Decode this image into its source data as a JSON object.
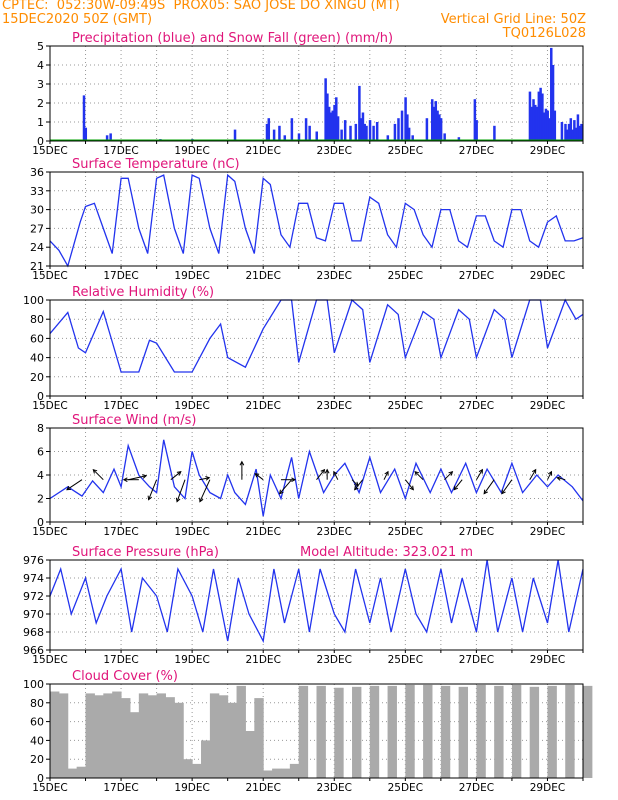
{
  "header": {
    "line1_left": "CPTEC:  052:30W-09:49S  PROX05: SAO JOSE DO XINGU (MT)",
    "line2_left": "15DEC2020 50Z (GMT)",
    "line2_right": "Vertical Grid Line: 50Z",
    "line3_right": "TQ0126L028"
  },
  "colors": {
    "title": "#e0157a",
    "header": "#ff8c00",
    "line": "#2233ee",
    "snow": "#00a000",
    "cloud": "#aaaaaa"
  },
  "x_ticks": [
    "15DEC",
    "17DEC",
    "19DEC",
    "21DEC",
    "23DEC",
    "25DEC",
    "27DEC",
    "29DEC"
  ],
  "x_range_days": [
    15,
    30
  ],
  "chart_data": [
    {
      "type": "bar",
      "title": "Precipitation (blue) and Snow Fall (green) (mm/h)",
      "ylim": [
        0,
        5
      ],
      "yticks": [
        "0",
        "1",
        "2",
        "3",
        "4",
        "5"
      ],
      "series": [
        {
          "name": "Precipitation",
          "values": [
            [
              15.95,
              2.4
            ],
            [
              16.0,
              0.7
            ],
            [
              16.6,
              0.3
            ],
            [
              16.7,
              0.4
            ],
            [
              18.1,
              0.1
            ],
            [
              19.0,
              0.1
            ],
            [
              20.2,
              0.6
            ],
            [
              21.1,
              0.9
            ],
            [
              21.15,
              1.2
            ],
            [
              21.3,
              0.6
            ],
            [
              21.45,
              0.8
            ],
            [
              21.6,
              0.3
            ],
            [
              21.8,
              1.2
            ],
            [
              22.0,
              0.4
            ],
            [
              22.2,
              1.2
            ],
            [
              22.3,
              0.8
            ],
            [
              22.5,
              0.5
            ],
            [
              22.75,
              3.3
            ],
            [
              22.8,
              2.5
            ],
            [
              22.85,
              1.8
            ],
            [
              22.9,
              1.5
            ],
            [
              22.95,
              1.6
            ],
            [
              23.0,
              1.9
            ],
            [
              23.05,
              2.3
            ],
            [
              23.1,
              1.3
            ],
            [
              23.2,
              0.6
            ],
            [
              23.3,
              1.1
            ],
            [
              23.45,
              0.8
            ],
            [
              23.6,
              0.9
            ],
            [
              23.7,
              2.9
            ],
            [
              23.75,
              1.2
            ],
            [
              23.8,
              1.5
            ],
            [
              23.85,
              0.9
            ],
            [
              23.9,
              0.8
            ],
            [
              24.0,
              1.1
            ],
            [
              24.1,
              0.8
            ],
            [
              24.2,
              1.0
            ],
            [
              24.5,
              0.3
            ],
            [
              24.7,
              0.9
            ],
            [
              24.8,
              1.2
            ],
            [
              24.9,
              1.6
            ],
            [
              25.0,
              2.3
            ],
            [
              25.05,
              1.4
            ],
            [
              25.1,
              0.7
            ],
            [
              25.2,
              0.3
            ],
            [
              25.6,
              1.2
            ],
            [
              25.75,
              2.2
            ],
            [
              25.8,
              1.8
            ],
            [
              25.85,
              2.1
            ],
            [
              25.9,
              1.6
            ],
            [
              25.95,
              1.4
            ],
            [
              26.0,
              1.2
            ],
            [
              26.1,
              0.4
            ],
            [
              26.5,
              0.2
            ],
            [
              26.95,
              2.2
            ],
            [
              27.0,
              1.1
            ],
            [
              27.5,
              0.8
            ],
            [
              28.5,
              2.6
            ],
            [
              28.55,
              1.8
            ],
            [
              28.6,
              2.2
            ],
            [
              28.65,
              1.9
            ],
            [
              28.7,
              1.8
            ],
            [
              28.75,
              2.6
            ],
            [
              28.8,
              2.8
            ],
            [
              28.85,
              2.5
            ],
            [
              28.9,
              1.5
            ],
            [
              28.95,
              1.7
            ],
            [
              29.0,
              1.6
            ],
            [
              29.05,
              1.2
            ],
            [
              29.1,
              4.9
            ],
            [
              29.15,
              4.0
            ],
            [
              29.2,
              1.6
            ],
            [
              29.4,
              1.0
            ],
            [
              29.5,
              0.9
            ],
            [
              29.55,
              0.6
            ],
            [
              29.6,
              0.9
            ],
            [
              29.65,
              1.2
            ],
            [
              29.7,
              0.6
            ],
            [
              29.75,
              1.1
            ],
            [
              29.8,
              0.7
            ],
            [
              29.85,
              1.4
            ],
            [
              29.9,
              0.8
            ],
            [
              29.95,
              0.9
            ]
          ]
        },
        {
          "name": "Snow Fall",
          "values": [
            [
              15,
              0
            ],
            [
              30,
              0
            ]
          ]
        }
      ]
    },
    {
      "type": "line",
      "title": "Surface Temperature (nC)",
      "ylim": [
        21,
        36
      ],
      "yticks": [
        "21",
        "24",
        "27",
        "30",
        "33",
        "36"
      ],
      "x": [
        15.0,
        15.25,
        15.5,
        15.85,
        16.0,
        16.25,
        16.5,
        16.75,
        17.0,
        17.2,
        17.5,
        17.75,
        18.0,
        18.2,
        18.5,
        18.75,
        19.0,
        19.2,
        19.5,
        19.75,
        20.0,
        20.2,
        20.5,
        20.75,
        21.0,
        21.2,
        21.5,
        21.75,
        22.0,
        22.25,
        22.5,
        22.75,
        23.0,
        23.25,
        23.5,
        23.75,
        24.0,
        24.25,
        24.5,
        24.75,
        25.0,
        25.25,
        25.5,
        25.75,
        26.0,
        26.25,
        26.5,
        26.75,
        27.0,
        27.25,
        27.5,
        27.75,
        28.0,
        28.25,
        28.5,
        28.75,
        29.0,
        29.25,
        29.5,
        29.75,
        30.0
      ],
      "y": [
        25,
        23.5,
        21,
        28,
        30.5,
        31,
        27,
        23,
        35,
        35,
        27,
        23,
        35,
        35.5,
        27,
        23,
        35.5,
        35,
        27,
        23,
        35.5,
        34.5,
        27,
        23,
        35,
        34,
        26,
        24,
        31,
        31,
        25.5,
        25,
        31,
        31,
        25,
        25,
        32,
        31,
        26,
        24,
        31,
        30,
        26,
        24,
        30,
        30,
        25,
        24,
        29,
        29,
        25,
        24,
        30,
        30,
        25,
        24,
        28,
        29,
        25,
        25,
        25.5
      ]
    },
    {
      "type": "line",
      "title": "Relative Humidity (%)",
      "ylim": [
        0,
        100
      ],
      "yticks": [
        "0",
        "20",
        "40",
        "60",
        "80",
        "100"
      ],
      "x": [
        15.0,
        15.5,
        15.8,
        16.0,
        16.5,
        17.0,
        17.5,
        17.8,
        18.0,
        18.5,
        19.0,
        19.5,
        19.8,
        20.0,
        20.5,
        21.0,
        21.5,
        21.8,
        22.0,
        22.5,
        22.8,
        23.0,
        23.5,
        23.8,
        24.0,
        24.5,
        24.8,
        25.0,
        25.5,
        25.8,
        26.0,
        26.5,
        26.8,
        27.0,
        27.5,
        27.8,
        28.0,
        28.5,
        28.8,
        29.0,
        29.5,
        29.8,
        30.0
      ],
      "y": [
        65,
        87,
        50,
        45,
        88,
        25,
        25,
        58,
        55,
        25,
        25,
        60,
        75,
        40,
        30,
        70,
        100,
        100,
        35,
        100,
        100,
        45,
        100,
        90,
        35,
        95,
        85,
        40,
        88,
        80,
        40,
        90,
        80,
        40,
        90,
        80,
        40,
        100,
        100,
        50,
        100,
        80,
        85
      ]
    },
    {
      "type": "line",
      "title": "Surface Wind (m/s)",
      "ylim": [
        0,
        8
      ],
      "yticks": [
        "0",
        "2",
        "4",
        "6",
        "8"
      ],
      "x": [
        15.0,
        15.5,
        15.9,
        16.2,
        16.5,
        16.8,
        17.0,
        17.2,
        17.5,
        17.8,
        18.0,
        18.2,
        18.5,
        18.8,
        19.0,
        19.2,
        19.5,
        19.8,
        20.0,
        20.2,
        20.5,
        20.8,
        21.0,
        21.2,
        21.5,
        21.8,
        22.0,
        22.3,
        22.7,
        23.0,
        23.3,
        23.7,
        24.0,
        24.3,
        24.7,
        25.0,
        25.3,
        25.7,
        26.0,
        26.3,
        26.7,
        27.0,
        27.3,
        27.7,
        28.0,
        28.3,
        28.7,
        29.0,
        29.3,
        29.7,
        30.0
      ],
      "y": [
        2,
        3,
        2.2,
        3.5,
        2.5,
        4.5,
        3,
        6.5,
        4,
        3,
        2.5,
        7,
        3,
        2,
        6,
        4,
        2.5,
        2,
        4,
        2.5,
        1.5,
        4.5,
        0.5,
        4,
        2,
        5.5,
        2,
        6,
        2.5,
        4,
        5,
        2.5,
        5.5,
        2.5,
        4.5,
        2,
        5,
        2.5,
        4.5,
        2.5,
        5,
        2.5,
        4.5,
        2.5,
        5,
        2.5,
        4,
        3,
        4,
        3,
        1.8
      ]
    },
    {
      "type": "line",
      "title": "Surface Pressure (hPa)",
      "ylim": [
        966,
        976
      ],
      "yticks": [
        "966",
        "968",
        "970",
        "972",
        "974",
        "976"
      ],
      "annotation": "Model Altitude: 323.021  m",
      "x": [
        15.0,
        15.3,
        15.6,
        16.0,
        16.3,
        16.6,
        17.0,
        17.3,
        17.6,
        18.0,
        18.3,
        18.6,
        19.0,
        19.3,
        19.6,
        20.0,
        20.3,
        20.6,
        21.0,
        21.3,
        21.6,
        22.0,
        22.3,
        22.6,
        23.0,
        23.3,
        23.6,
        24.0,
        24.3,
        24.6,
        25.0,
        25.3,
        25.6,
        26.0,
        26.3,
        26.6,
        27.0,
        27.3,
        27.6,
        28.0,
        28.3,
        28.6,
        29.0,
        29.3,
        29.6,
        30.0
      ],
      "y": [
        972,
        975,
        970,
        974,
        969,
        972,
        975,
        968,
        974,
        972,
        968,
        975,
        972,
        968,
        975,
        967,
        974,
        970,
        967,
        975,
        969,
        975,
        968,
        975,
        970,
        968,
        975,
        969,
        974,
        968,
        975,
        970,
        968,
        975,
        969,
        974,
        968,
        976,
        968,
        974,
        968,
        974,
        969,
        976,
        968,
        975
      ]
    },
    {
      "type": "bar",
      "title": "Cloud Cover (%)",
      "ylim": [
        0,
        100
      ],
      "yticks": [
        "0",
        "20",
        "40",
        "60",
        "80",
        "100"
      ],
      "x": [
        15.0,
        15.25,
        15.5,
        15.75,
        16.0,
        16.25,
        16.5,
        16.75,
        17.0,
        17.25,
        17.5,
        17.75,
        18.0,
        18.25,
        18.5,
        18.75,
        19.0,
        19.25,
        19.5,
        19.75,
        20.0,
        20.25,
        20.5,
        20.75,
        21.0,
        21.25,
        21.5,
        21.75,
        22.0,
        22.5,
        23.0,
        23.5,
        24.0,
        24.5,
        25.0,
        25.5,
        26.0,
        26.5,
        27.0,
        27.5,
        28.0,
        28.5,
        29.0,
        29.5,
        30.0
      ],
      "values": [
        92,
        90,
        10,
        12,
        90,
        88,
        90,
        92,
        85,
        70,
        90,
        88,
        90,
        86,
        80,
        20,
        15,
        40,
        90,
        88,
        80,
        98,
        50,
        85,
        8,
        10,
        10,
        15,
        98,
        98,
        96,
        97,
        98,
        98,
        99,
        99,
        98,
        97,
        99,
        98,
        99,
        97,
        98,
        99,
        98
      ]
    }
  ]
}
